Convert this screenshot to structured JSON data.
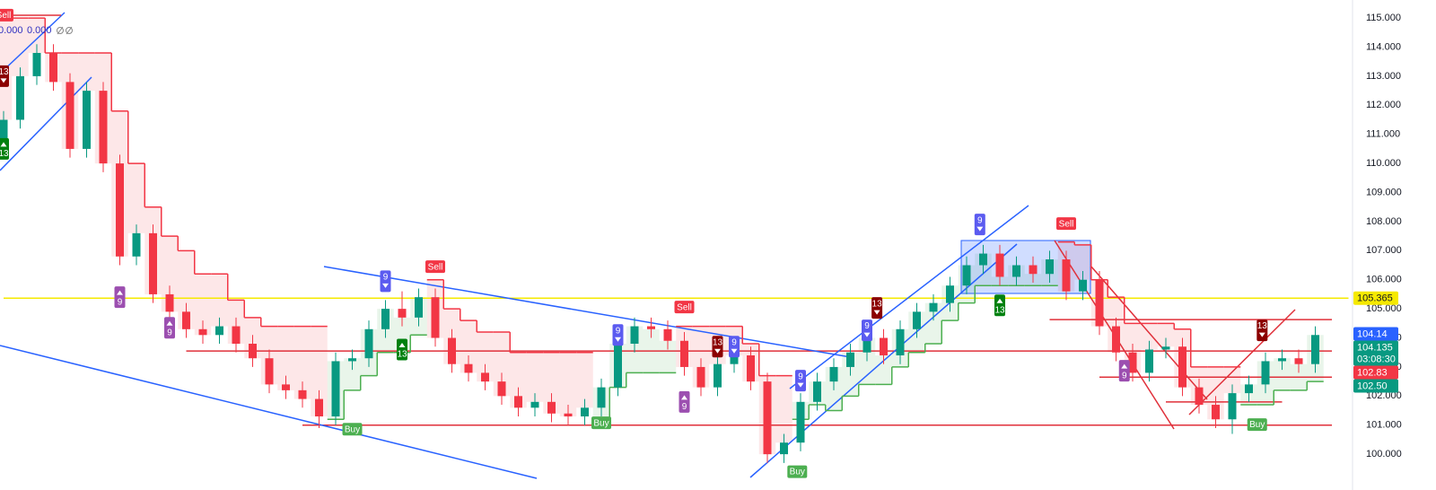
{
  "chart_data": {
    "type": "candlestick",
    "ylim": [
      98.77,
      115.62
    ],
    "yticks": [
      {
        "value": 100,
        "label": "100.000"
      },
      {
        "value": 101,
        "label": "101.000"
      },
      {
        "value": 102,
        "label": "102.000"
      },
      {
        "value": 103,
        "label": "103.000"
      },
      {
        "value": 104,
        "label": "104.000"
      },
      {
        "value": 105,
        "label": "105.000"
      },
      {
        "value": 106,
        "label": "106.000"
      },
      {
        "value": 107,
        "label": "107.000"
      },
      {
        "value": 108,
        "label": "108.000"
      },
      {
        "value": 109,
        "label": "109.000"
      },
      {
        "value": 110,
        "label": "110.000"
      },
      {
        "value": 111,
        "label": "111.000"
      },
      {
        "value": 112,
        "label": "112.000"
      },
      {
        "value": 113,
        "label": "113.000"
      },
      {
        "value": 114,
        "label": "114.000"
      },
      {
        "value": 115,
        "label": "115.000"
      }
    ],
    "up_color": "#089981",
    "down_color": "#f23645",
    "open": [
      110.8,
      111.5,
      113,
      113.8,
      112.8,
      110.5,
      112.5,
      110,
      106.8,
      107.6,
      105.5,
      104.9,
      104.3,
      104.1,
      104.4,
      103.8,
      103.3,
      102.4,
      102.2,
      101.9,
      101.3,
      103.2,
      103.3,
      104.3,
      105,
      104.7,
      105.4,
      104,
      103.1,
      102.8,
      102.5,
      102,
      101.6,
      101.8,
      101.4,
      101.3,
      101.6,
      102.3,
      103.8,
      104.4,
      104.3,
      103.9,
      103,
      102.3,
      103.1,
      103.4,
      102.5,
      100,
      100.4,
      101.8,
      102.5,
      103,
      103.5,
      104,
      103.4,
      104.3,
      104.9,
      105.2,
      105.8,
      106.5,
      106.9,
      106.1,
      106.5,
      106.2,
      106.7,
      105.6,
      106,
      104.4,
      103.5,
      102.8,
      103.6,
      103.7,
      102.3,
      101.7,
      101.2,
      102.1,
      102.4,
      103.2,
      103.3,
      103.1
    ],
    "high": [
      111.8,
      113.3,
      114.1,
      114.1,
      113.1,
      112.8,
      112.8,
      110.3,
      107.9,
      107.9,
      105.8,
      105.2,
      104.6,
      104.7,
      104.7,
      104.1,
      103.6,
      102.7,
      102.5,
      102.2,
      103.5,
      103.6,
      104.6,
      105.3,
      105.6,
      105.7,
      105.7,
      104.3,
      103.4,
      103.1,
      102.8,
      102.3,
      102.1,
      102.1,
      101.7,
      101.9,
      102.6,
      104.1,
      104.7,
      104.7,
      104.6,
      104.2,
      103.3,
      103.4,
      103.7,
      103.7,
      102.8,
      100.7,
      102.1,
      102.8,
      103.3,
      103.8,
      104.3,
      104.3,
      104.6,
      105.2,
      105.5,
      106.1,
      106.8,
      107.2,
      107.2,
      106.8,
      106.8,
      107,
      107,
      106.3,
      106.3,
      104.7,
      103.8,
      103.9,
      104,
      104,
      102.6,
      102,
      102.4,
      102.7,
      103.5,
      103.6,
      103.6,
      104.4
    ],
    "low": [
      110.5,
      111.2,
      112.7,
      112.5,
      110.2,
      110.2,
      109.7,
      106.5,
      106.5,
      105.2,
      104.6,
      104,
      103.8,
      103.8,
      103.5,
      103,
      102.1,
      101.9,
      101.6,
      100.9,
      101,
      102.9,
      103,
      104,
      104.4,
      104.4,
      103.7,
      102.8,
      102.5,
      102.2,
      101.7,
      101.3,
      101.3,
      101.1,
      101,
      101,
      101.3,
      102,
      103.5,
      104,
      103.6,
      102.7,
      102,
      102,
      102.8,
      102.2,
      99.7,
      99.7,
      100.1,
      101.5,
      102.2,
      102.7,
      103.2,
      103.1,
      103.1,
      104,
      104.6,
      104.9,
      105.5,
      106.2,
      105.8,
      105.8,
      105.9,
      105.9,
      105.3,
      105.3,
      104.1,
      103.2,
      102.5,
      102.5,
      103.3,
      102,
      101.4,
      100.9,
      100.7,
      101.8,
      102.1,
      102.9,
      102.8,
      102.8
    ],
    "close": [
      111.5,
      113,
      113.8,
      112.8,
      110.5,
      112.5,
      110,
      106.8,
      107.6,
      105.5,
      104.9,
      104.3,
      104.1,
      104.4,
      103.8,
      103.3,
      102.4,
      102.2,
      101.9,
      101.3,
      103.2,
      103.3,
      104.3,
      105,
      104.7,
      105.4,
      104,
      103.1,
      102.8,
      102.5,
      102,
      101.6,
      101.8,
      101.4,
      101.3,
      101.6,
      102.3,
      103.8,
      104.4,
      104.3,
      103.9,
      103,
      102.3,
      103.1,
      103.4,
      102.5,
      100,
      100.4,
      101.8,
      102.5,
      103,
      103.5,
      104,
      103.4,
      104.3,
      104.9,
      105.2,
      105.8,
      106.5,
      106.9,
      106.1,
      106.5,
      106.2,
      106.7,
      105.6,
      106,
      104.4,
      103.5,
      102.8,
      103.6,
      103.7,
      102.3,
      101.7,
      101.2,
      102.1,
      102.4,
      103.2,
      103.3,
      103.1,
      104.1
    ],
    "trend": [
      115,
      115,
      115,
      113.8,
      113.8,
      113.8,
      113.8,
      111.8,
      110,
      108.5,
      107.5,
      107,
      106.2,
      106.2,
      105.3,
      104.7,
      104.4,
      104.4,
      104.4,
      104.4,
      101.2,
      102.2,
      102.7,
      103.5,
      103.5,
      104.1,
      106,
      105,
      104.6,
      104.2,
      104.2,
      103.5,
      103.5,
      103.5,
      103.5,
      103.5,
      101.2,
      102.3,
      102.8,
      102.8,
      102.8,
      104.4,
      104.4,
      104.4,
      104.4,
      103.8,
      102.7,
      102.7,
      101.2,
      101.7,
      101.5,
      102,
      102.4,
      102.4,
      103,
      103.5,
      103.8,
      104.6,
      105.2,
      105.8,
      105.8,
      105.8,
      105.8,
      105.8,
      107.3,
      107.2,
      106,
      105.4,
      104.5,
      104.5,
      104.5,
      104.3,
      103,
      103,
      103,
      101.7,
      101.7,
      102.2,
      102.2,
      102.5
    ],
    "trend_down_color": "#f23645",
    "trend_up_color": "#4caf50",
    "levels": [
      {
        "value": 105.365,
        "from": 0,
        "to": 81,
        "color": "#f5e900"
      },
      {
        "value": 101.0,
        "from": 18,
        "to": 80,
        "color": "#e0303a"
      },
      {
        "value": 103.55,
        "from": 11,
        "to": 80,
        "color": "#e0303a"
      },
      {
        "value": 104.63,
        "from": 63,
        "to": 80,
        "color": "#e0303a"
      },
      {
        "value": 102.65,
        "from": 66,
        "to": 80,
        "color": "#e0303a"
      },
      {
        "value": 101.8,
        "from": 70,
        "to": 77,
        "color": "#e0303a"
      }
    ],
    "markers": [
      {
        "label": "Sell",
        "x": 0,
        "y": 115.1,
        "color": "#f23645"
      },
      {
        "label": "13",
        "x": 0,
        "y": 113.0,
        "color": "#8b0000",
        "arrow": "down"
      },
      {
        "label": "13",
        "x": 0,
        "y": 110.5,
        "color": "#00810f",
        "arrow": "up"
      },
      {
        "label": "9",
        "x": 7,
        "y": 105.4,
        "color": "#9c4fb0",
        "arrow": "up"
      },
      {
        "label": "9",
        "x": 10,
        "y": 104.35,
        "color": "#9c4fb0",
        "arrow": "up"
      },
      {
        "label": "Buy",
        "x": 21,
        "y": 100.86,
        "color": "#4caf50"
      },
      {
        "label": "9",
        "x": 23,
        "y": 105.95,
        "color": "#5b5bf0",
        "arrow": "down"
      },
      {
        "label": "13",
        "x": 24,
        "y": 103.6,
        "color": "#00810f",
        "arrow": "up"
      },
      {
        "label": "Sell",
        "x": 26,
        "y": 106.45,
        "color": "#f23645"
      },
      {
        "label": "Buy",
        "x": 36,
        "y": 101.08,
        "color": "#4caf50"
      },
      {
        "label": "9",
        "x": 37,
        "y": 104.1,
        "color": "#5b5bf0",
        "arrow": "down"
      },
      {
        "label": "Sell",
        "x": 41,
        "y": 105.06,
        "color": "#f23645"
      },
      {
        "label": "9",
        "x": 41,
        "y": 101.8,
        "color": "#9c4fb0",
        "arrow": "up"
      },
      {
        "label": "13",
        "x": 43,
        "y": 103.7,
        "color": "#8b0000",
        "arrow": "down"
      },
      {
        "label": "9",
        "x": 44,
        "y": 103.7,
        "color": "#5b5bf0",
        "arrow": "down"
      },
      {
        "label": "9",
        "x": 48,
        "y": 102.53,
        "color": "#5b5bf0",
        "arrow": "down"
      },
      {
        "label": "Buy",
        "x": 47.8,
        "y": 99.4,
        "color": "#4caf50"
      },
      {
        "label": "9",
        "x": 52,
        "y": 104.26,
        "color": "#5b5bf0",
        "arrow": "down"
      },
      {
        "label": "13",
        "x": 52.6,
        "y": 105.03,
        "color": "#8b0000",
        "arrow": "down"
      },
      {
        "label": "9",
        "x": 58.8,
        "y": 107.9,
        "color": "#5b5bf0",
        "arrow": "down"
      },
      {
        "label": "13",
        "x": 60,
        "y": 105.12,
        "color": "#00810f",
        "arrow": "up"
      },
      {
        "label": "Sell",
        "x": 64,
        "y": 107.93,
        "color": "#f23645"
      },
      {
        "label": "9",
        "x": 67.5,
        "y": 102.87,
        "color": "#9c4fb0",
        "arrow": "up"
      },
      {
        "label": "Buy",
        "x": 75.5,
        "y": 101.02,
        "color": "#4caf50"
      },
      {
        "label": "13",
        "x": 75.8,
        "y": 104.26,
        "color": "#8b0000",
        "arrow": "down"
      }
    ],
    "indicator_values": [
      "0.000",
      "0.000"
    ],
    "price_tags": [
      {
        "value": 105.365,
        "label": "105.365",
        "color": "#f5e900",
        "text_color": "#131722"
      },
      {
        "value": 104.14,
        "label": "104.14",
        "color": "#2962ff",
        "text_color": "#ffffff"
      },
      {
        "value": 104.135,
        "label": "104.135",
        "color": "#089981",
        "text_color": "#ffffff",
        "countdown": "03:08:30"
      },
      {
        "value": 102.83,
        "label": "102.83",
        "color": "#f23645",
        "text_color": "#ffffff"
      },
      {
        "value": 102.5,
        "label": "102.50",
        "color": "#089981",
        "text_color": "#ffffff"
      }
    ]
  }
}
